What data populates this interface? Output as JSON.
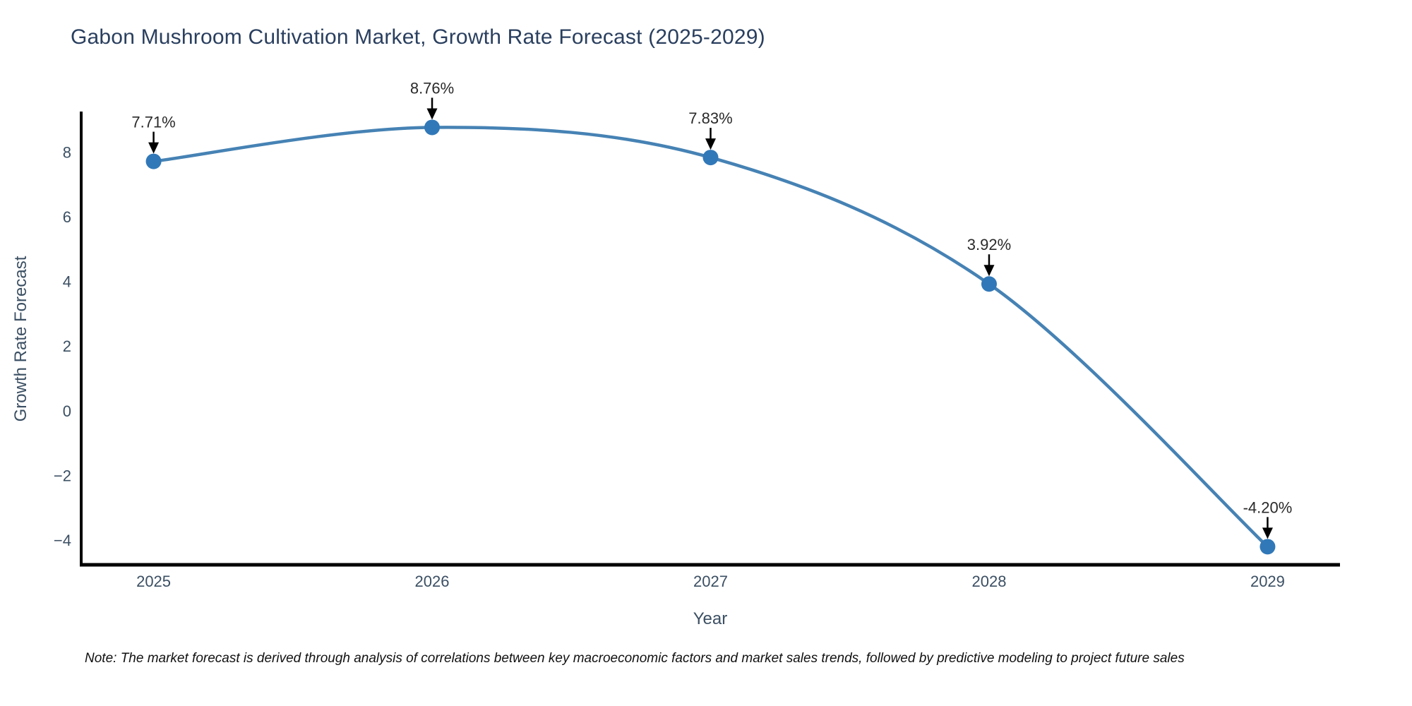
{
  "title": "Gabon Mushroom Cultivation Market, Growth Rate Forecast (2025-2029)",
  "note": "Note: The market forecast is derived through analysis of correlations between key macroeconomic factors and market sales trends, followed by predictive modeling to project future sales",
  "chart_data": {
    "type": "line",
    "title": "Gabon Mushroom Cultivation Market, Growth Rate Forecast (2025-2029)",
    "xlabel": "Year",
    "ylabel": "Growth Rate Forecast",
    "x": [
      2025,
      2026,
      2027,
      2028,
      2029
    ],
    "series": [
      {
        "name": "Growth Rate Forecast",
        "values": [
          7.71,
          8.76,
          7.83,
          3.92,
          -4.2
        ]
      }
    ],
    "point_labels": [
      "7.71%",
      "8.76%",
      "7.83%",
      "3.92%",
      "-4.20%"
    ],
    "xticks": {
      "values": [
        2025,
        2026,
        2027,
        2028,
        2029
      ],
      "labels": [
        "2025",
        "2026",
        "2027",
        "2028",
        "2029"
      ]
    },
    "yticks": {
      "values": [
        8,
        6,
        4,
        2,
        0,
        -2,
        -4
      ],
      "labels": [
        "8",
        "6",
        "4",
        "2",
        "0",
        "−2",
        "−4"
      ]
    },
    "xlim": [
      2024.74,
      2029.26
    ],
    "ylim": [
      -4.76,
      9.25
    ],
    "grid": false,
    "legend": "none",
    "line_shape": "spline",
    "marker": "circle",
    "annotation_arrows": true,
    "colors": {
      "line": "#4682b4",
      "marker": "#3178b8",
      "axis": "#000000",
      "title_text": "#2a3f5f",
      "tick_text": "#3b4f63",
      "annotation_text": "#2a2a2a",
      "annotation_arrow": "#000000",
      "background": "#ffffff"
    }
  }
}
